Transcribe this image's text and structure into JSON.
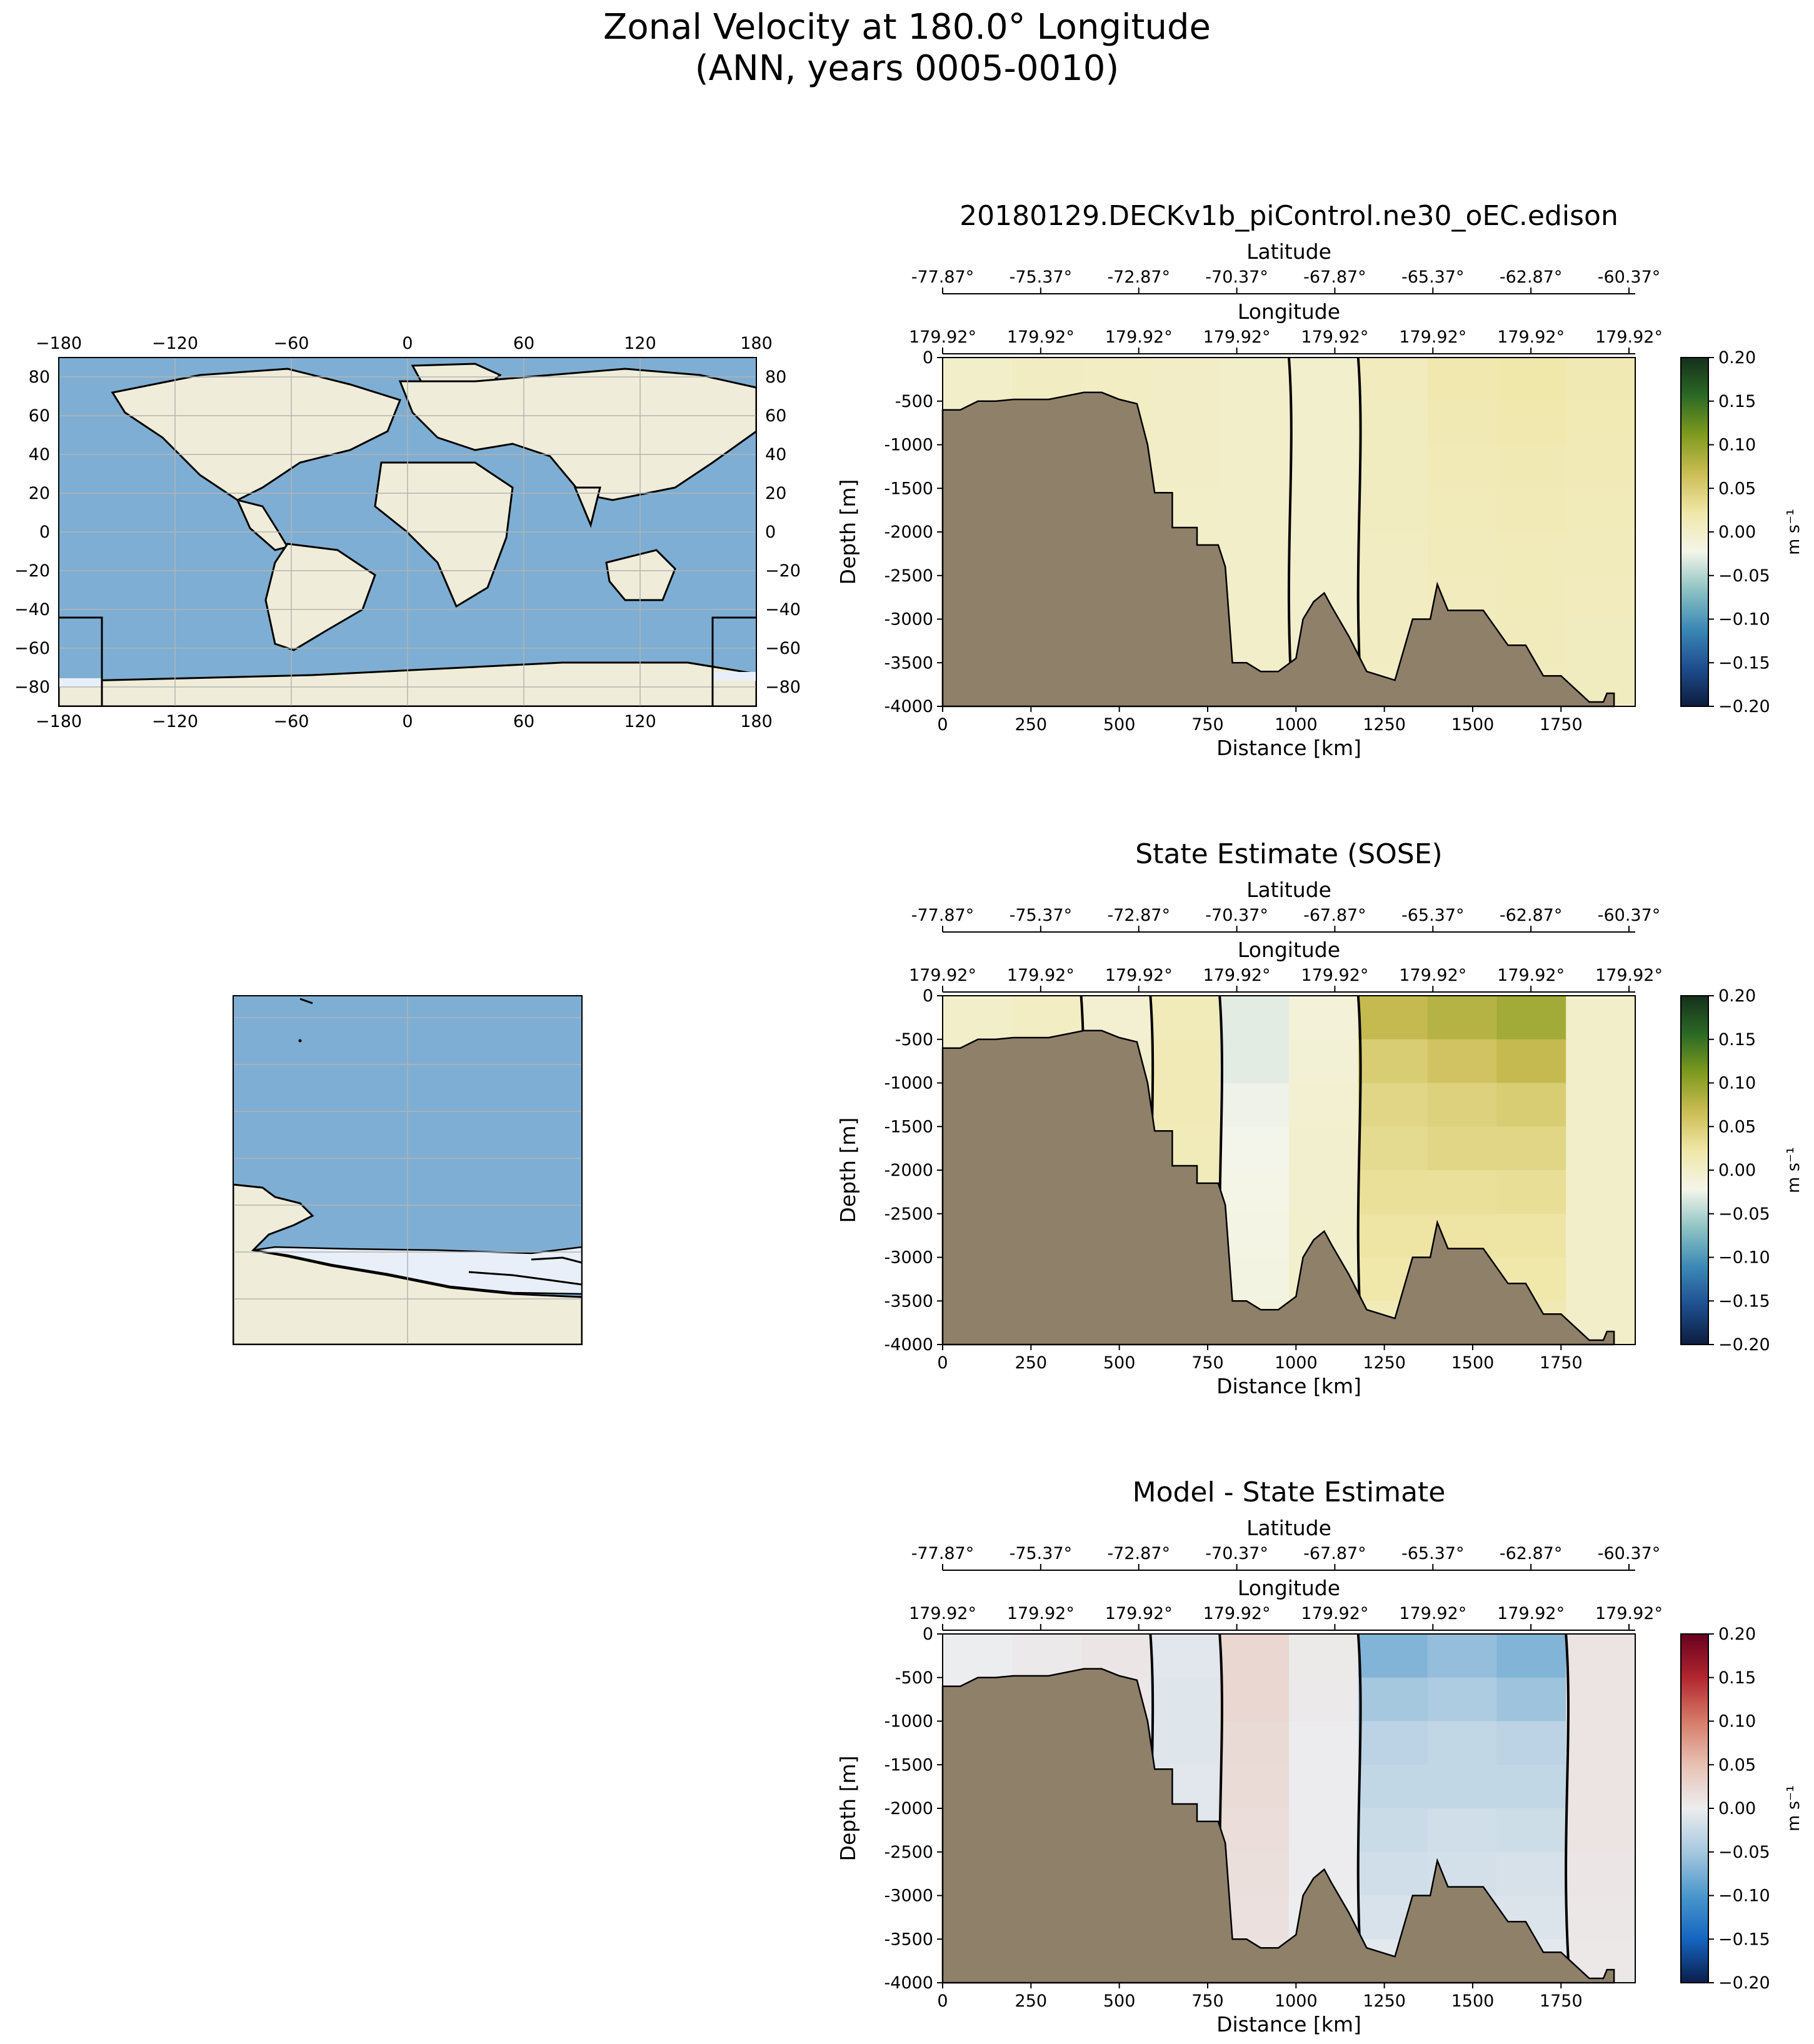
{
  "figure": {
    "title_line1": "Zonal Velocity at 180.0° Longitude",
    "title_line2": "(ANN, years 0005-0010)"
  },
  "map": {
    "lon_ticks": [
      "−180",
      "−120",
      "−60",
      "0",
      "60",
      "120",
      "180"
    ],
    "lat_ticks": [
      "80",
      "60",
      "40",
      "20",
      "0",
      "−20",
      "−40",
      "−60",
      "−80"
    ],
    "colors": {
      "ocean": "#7eaed3",
      "land": "#efedd9",
      "ice": "#e8eff8",
      "grid": "#b3b3b3"
    }
  },
  "panels": [
    {
      "id": "model",
      "title": "20180129.DECKv1b_piControl.ne30_oEC.edison",
      "colormap": [
        "#0c1c3e",
        "#1e4e8f",
        "#3b88b5",
        "#8cc2c3",
        "#f4f5ea",
        "#f0e7a8",
        "#cbbd54",
        "#7f9b1e",
        "#2c6a25",
        "#14301b"
      ]
    },
    {
      "id": "sose",
      "title": "State Estimate (SOSE)",
      "colormap": [
        "#0c1c3e",
        "#1e4e8f",
        "#3b88b5",
        "#8cc2c3",
        "#f4f5ea",
        "#f0e7a8",
        "#cbbd54",
        "#7f9b1e",
        "#2c6a25",
        "#14301b"
      ]
    },
    {
      "id": "diff",
      "title": "Model - State Estimate",
      "colormap": [
        "#0b1e4b",
        "#1565c0",
        "#4a97cc",
        "#a6c8df",
        "#ecedef",
        "#e8c1b3",
        "#d67b68",
        "#b2262f",
        "#67001f"
      ]
    }
  ],
  "axis_labels": {
    "latitude": "Latitude",
    "longitude": "Longitude",
    "depth": "Depth [m]",
    "distance": "Distance [km]",
    "colorbar_unit": "m s⁻¹"
  },
  "chart_data": {
    "type": "heatmap",
    "x": {
      "label": "Distance [km]",
      "ticks": [
        0,
        250,
        500,
        750,
        1000,
        1250,
        1500,
        1750
      ],
      "range": [
        0,
        1960
      ]
    },
    "y": {
      "label": "Depth [m]",
      "ticks": [
        0,
        -500,
        -1000,
        -1500,
        -2000,
        -2500,
        -3000,
        -3500,
        -4000
      ],
      "range": [
        -4000,
        0
      ]
    },
    "latitude_ticks": [
      "-77.87°",
      "-75.37°",
      "-72.87°",
      "-70.37°",
      "-67.87°",
      "-65.37°",
      "-62.87°",
      "-60.37°"
    ],
    "longitude_ticks": [
      "179.92°",
      "179.92°",
      "179.92°",
      "179.92°",
      "179.92°",
      "179.92°",
      "179.92°",
      "179.92°"
    ],
    "colorbar_ticks": [
      "0.20",
      "0.15",
      "0.10",
      "0.05",
      "0.00",
      "−0.05",
      "−0.10",
      "−0.15",
      "−0.20"
    ],
    "colorbar_range": [
      -0.2,
      0.2
    ],
    "unit": "m s⁻¹",
    "bathymetry_top": [
      [
        0,
        -600
      ],
      [
        50,
        -600
      ],
      [
        100,
        -500
      ],
      [
        150,
        -500
      ],
      [
        200,
        -480
      ],
      [
        300,
        -480
      ],
      [
        400,
        -400
      ],
      [
        450,
        -400
      ],
      [
        500,
        -480
      ],
      [
        550,
        -530
      ],
      [
        580,
        -1000
      ],
      [
        600,
        -1550
      ],
      [
        650,
        -1550
      ],
      [
        650,
        -1950
      ],
      [
        720,
        -1950
      ],
      [
        720,
        -2150
      ],
      [
        780,
        -2150
      ],
      [
        800,
        -2400
      ],
      [
        820,
        -3500
      ],
      [
        860,
        -3500
      ],
      [
        900,
        -3600
      ],
      [
        950,
        -3600
      ],
      [
        1000,
        -3450
      ],
      [
        1020,
        -3000
      ],
      [
        1050,
        -2800
      ],
      [
        1080,
        -2700
      ],
      [
        1100,
        -2850
      ],
      [
        1150,
        -3200
      ],
      [
        1200,
        -3600
      ],
      [
        1280,
        -3700
      ],
      [
        1330,
        -3000
      ],
      [
        1380,
        -3000
      ],
      [
        1400,
        -2600
      ],
      [
        1430,
        -2900
      ],
      [
        1530,
        -2900
      ],
      [
        1600,
        -3300
      ],
      [
        1650,
        -3300
      ],
      [
        1700,
        -3650
      ],
      [
        1750,
        -3650
      ],
      [
        1830,
        -3950
      ],
      [
        1870,
        -3950
      ],
      [
        1880,
        -3850
      ],
      [
        1900,
        -3850
      ],
      [
        1900,
        -4000
      ]
    ],
    "series": [
      {
        "name": "20180129.DECKv1b_piControl.ne30_oEC.edison",
        "values_ms": [
          [
            0.0,
            0.005,
            0.004,
            0.002,
            0.0,
            -0.003,
            0.008,
            0.018,
            0.02,
            0.015
          ],
          [
            0.0,
            0.004,
            0.004,
            0.002,
            0.0,
            -0.003,
            0.007,
            0.015,
            0.018,
            0.014
          ],
          [
            0.0,
            0.003,
            0.003,
            0.002,
            -0.001,
            -0.003,
            0.006,
            0.012,
            0.015,
            0.012
          ],
          [
            0.0,
            0.002,
            0.002,
            0.001,
            -0.001,
            -0.002,
            0.006,
            0.01,
            0.012,
            0.01
          ],
          [
            0.0,
            0.002,
            0.002,
            0.001,
            -0.001,
            -0.002,
            0.005,
            0.009,
            0.011,
            0.009
          ],
          [
            0.0,
            0.001,
            0.001,
            0.0,
            -0.001,
            -0.002,
            0.005,
            0.008,
            0.01,
            0.008
          ],
          [
            0.0,
            0.001,
            0.001,
            0.0,
            -0.001,
            -0.002,
            0.005,
            0.007,
            0.009,
            0.007
          ],
          [
            0.0,
            0.001,
            0.0,
            0.0,
            -0.001,
            -0.001,
            0.004,
            0.007,
            0.008,
            0.007
          ]
        ]
      },
      {
        "name": "State Estimate (SOSE)",
        "values_ms": [
          [
            0.0,
            0.004,
            -0.006,
            0.01,
            -0.03,
            -0.01,
            0.07,
            0.08,
            0.09,
            0.0
          ],
          [
            0.0,
            0.003,
            -0.004,
            0.012,
            -0.03,
            -0.008,
            0.05,
            0.06,
            0.07,
            0.0
          ],
          [
            0.0,
            0.002,
            -0.003,
            0.012,
            -0.025,
            -0.005,
            0.04,
            0.045,
            0.05,
            0.0
          ],
          [
            0.0,
            0.002,
            -0.002,
            0.01,
            -0.022,
            -0.004,
            0.035,
            0.04,
            0.04,
            0.0
          ],
          [
            0.0,
            0.001,
            -0.002,
            0.01,
            -0.02,
            -0.004,
            0.03,
            0.03,
            0.032,
            0.0
          ],
          [
            0.0,
            0.001,
            -0.001,
            0.008,
            -0.018,
            -0.003,
            0.025,
            0.025,
            0.025,
            0.0
          ],
          [
            0.0,
            0.001,
            -0.001,
            0.006,
            -0.016,
            -0.002,
            0.02,
            0.02,
            0.02,
            0.0
          ],
          [
            0.0,
            0.0,
            -0.001,
            0.004,
            -0.012,
            -0.002,
            0.01,
            0.012,
            0.015,
            0.0
          ]
        ]
      },
      {
        "name": "Model - State Estimate",
        "values_ms": [
          [
            0.0,
            0.004,
            0.008,
            -0.008,
            0.025,
            0.005,
            -0.07,
            -0.06,
            -0.07,
            0.01
          ],
          [
            0.0,
            0.004,
            0.006,
            -0.01,
            0.025,
            0.004,
            -0.05,
            -0.045,
            -0.055,
            0.01
          ],
          [
            0.0,
            0.003,
            0.005,
            -0.01,
            0.022,
            0.002,
            -0.035,
            -0.03,
            -0.035,
            0.01
          ],
          [
            0.0,
            0.002,
            0.004,
            -0.008,
            0.02,
            0.001,
            -0.03,
            -0.03,
            -0.03,
            0.01
          ],
          [
            0.0,
            0.002,
            0.004,
            -0.008,
            0.018,
            0.001,
            -0.025,
            -0.02,
            -0.022,
            0.01
          ],
          [
            0.0,
            0.001,
            0.002,
            -0.007,
            0.016,
            0.001,
            -0.02,
            -0.018,
            -0.016,
            0.008
          ],
          [
            0.0,
            0.001,
            0.002,
            -0.005,
            0.015,
            0.0,
            -0.015,
            -0.013,
            -0.012,
            0.007
          ],
          [
            0.0,
            0.001,
            0.001,
            -0.004,
            0.012,
            0.0,
            -0.006,
            -0.006,
            -0.007,
            0.006
          ]
        ]
      }
    ],
    "contour_levels_ms": [
      0.0,
      0.05,
      -0.05
    ]
  }
}
